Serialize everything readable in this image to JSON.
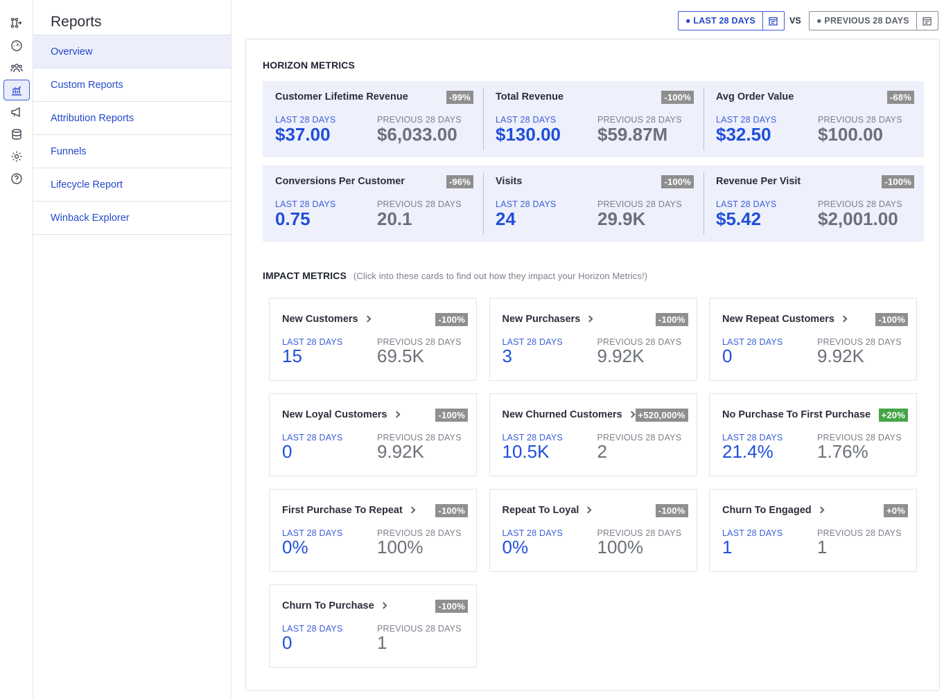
{
  "sidebar_icons": [
    {
      "name": "flows-icon",
      "active": false
    },
    {
      "name": "dashboard-gauge-icon",
      "active": false
    },
    {
      "name": "audience-icon",
      "active": false
    },
    {
      "name": "reports-chart-icon",
      "active": true
    },
    {
      "name": "campaigns-megaphone-icon",
      "active": false
    },
    {
      "name": "data-database-icon",
      "active": false
    },
    {
      "name": "settings-gear-icon",
      "active": false
    },
    {
      "name": "help-icon",
      "active": false
    }
  ],
  "subnav": {
    "title": "Reports",
    "items": [
      {
        "label": "Overview",
        "active": true
      },
      {
        "label": "Custom Reports"
      },
      {
        "label": "Attribution Reports"
      },
      {
        "label": "Funnels"
      },
      {
        "label": "Lifecycle Report"
      },
      {
        "label": "Winback Explorer"
      }
    ]
  },
  "toolbar": {
    "current_range": "● LAST 28 DAYS",
    "vs": "VS",
    "previous_range": "● PREVIOUS 28 DAYS"
  },
  "labels": {
    "current": "LAST 28 DAYS",
    "previous": "PREVIOUS 28 DAYS"
  },
  "horizon": {
    "title": "HORIZON METRICS",
    "rows": [
      [
        {
          "title": "Customer Lifetime Revenue",
          "change": "-99%",
          "current": "$37.00",
          "previous": "$6,033.00"
        },
        {
          "title": "Total Revenue",
          "change": "-100%",
          "current": "$130.00",
          "previous": "$59.87M"
        },
        {
          "title": "Avg Order Value",
          "change": "-68%",
          "current": "$32.50",
          "previous": "$100.00"
        }
      ],
      [
        {
          "title": "Conversions Per Customer",
          "change": "-96%",
          "current": "0.75",
          "previous": "20.1"
        },
        {
          "title": "Visits",
          "change": "-100%",
          "current": "24",
          "previous": "29.9K"
        },
        {
          "title": "Revenue Per Visit",
          "change": "-100%",
          "current": "$5.42",
          "previous": "$2,001.00"
        }
      ]
    ]
  },
  "impact": {
    "title": "IMPACT METRICS",
    "hint": "(Click into these cards to find out how they impact your Horizon Metrics!)",
    "cards": [
      {
        "title": "New Customers",
        "change": "-100%",
        "current": "15",
        "previous": "69.5K"
      },
      {
        "title": "New Purchasers",
        "change": "-100%",
        "current": "3",
        "previous": "9.92K"
      },
      {
        "title": "New Repeat Customers",
        "change": "-100%",
        "current": "0",
        "previous": "9.92K"
      },
      {
        "title": "New Loyal Customers",
        "change": "-100%",
        "current": "0",
        "previous": "9.92K"
      },
      {
        "title": "New Churned Customers",
        "change": "+520,000%",
        "current": "10.5K",
        "previous": "2"
      },
      {
        "title": "No Purchase To First Purchase",
        "change": "+20%",
        "positive": true,
        "current": "21.4%",
        "previous": "1.76%"
      },
      {
        "title": "First Purchase To Repeat",
        "change": "-100%",
        "current": "0%",
        "previous": "100%"
      },
      {
        "title": "Repeat To Loyal",
        "change": "-100%",
        "current": "0%",
        "previous": "100%"
      },
      {
        "title": "Churn To Engaged",
        "change": "+0%",
        "current": "1",
        "previous": "1"
      },
      {
        "title": "Churn To Purchase",
        "change": "-100%",
        "current": "0",
        "previous": "1"
      }
    ]
  },
  "colors": {
    "accent": "#1f4fd8",
    "positive_badge": "#45a549",
    "neutral_badge": "#8f8f8f",
    "horizon_bg": "#eef0fc"
  }
}
